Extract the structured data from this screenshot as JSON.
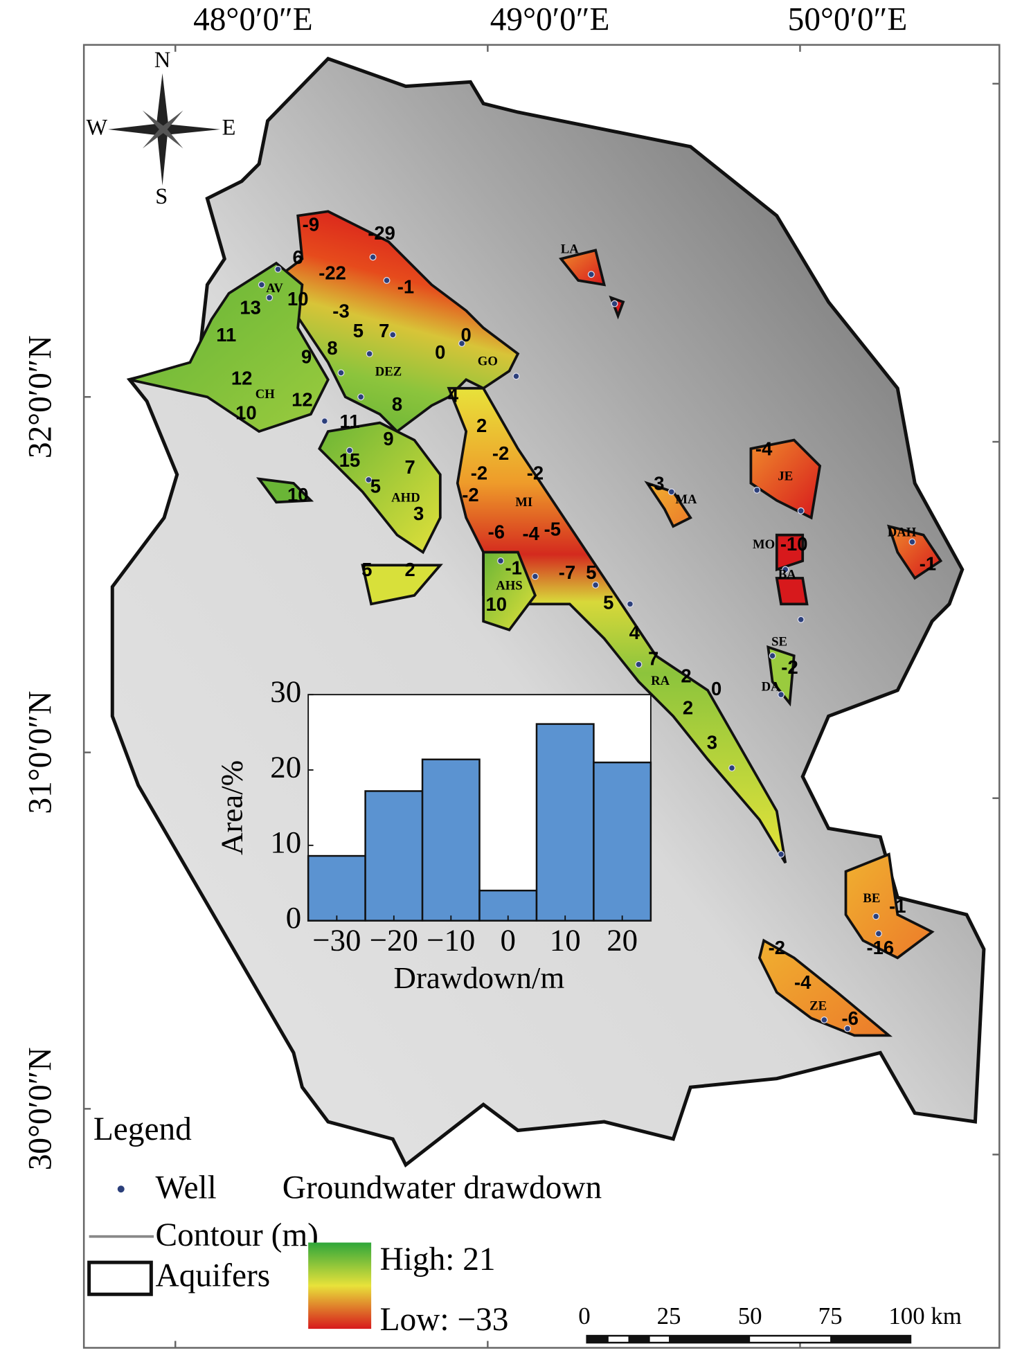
{
  "map": {
    "lon_labels": [
      "48°0′0″E",
      "49°0′0″E",
      "50°0′0″E"
    ],
    "lat_labels": [
      "32°0′0″N",
      "31°0′0″N",
      "30°0′0″N"
    ],
    "compass": {
      "n": "N",
      "s": "S",
      "w": "W",
      "e": "E"
    },
    "aquifer_labels": [
      "AV",
      "DEZ",
      "CH",
      "AHD",
      "GO",
      "MI",
      "AHS",
      "RA",
      "LA",
      "MA",
      "JE",
      "MO",
      "BA",
      "DAH",
      "SE",
      "DA",
      "BE",
      "ZE"
    ],
    "contour_labels": [
      "-29",
      "-9",
      "-22",
      "-3",
      "6",
      "13",
      "10",
      "-1",
      "5",
      "7",
      "9",
      "8",
      "0",
      "0",
      "12",
      "11",
      "12",
      "8",
      "11",
      "10",
      "9",
      "7",
      "15",
      "5",
      "3",
      "10",
      "5",
      "2",
      "4",
      "2",
      "-2",
      "-2",
      "-2",
      "-2",
      "-6",
      "-4",
      "-5",
      "-7",
      "5",
      "5",
      "4",
      "7",
      "2",
      "2",
      "0",
      "3",
      "10",
      "-1",
      "-4",
      "-10",
      "-3",
      "-2",
      "-1",
      "-1",
      "-16",
      "-2",
      "-4",
      "-6"
    ],
    "legend": {
      "title": "Legend",
      "well": "Well",
      "drawdown": "Groundwater drawdown",
      "contour": "Contour (m)",
      "aquifers": "Aquifers",
      "high": "High: 21",
      "low": "Low: −33"
    },
    "scale_bar": [
      "0",
      "25",
      "50",
      "75",
      "100 km"
    ]
  },
  "chart_data": {
    "type": "histogram",
    "bins": [
      -35,
      -25,
      -15,
      -5,
      5,
      15,
      25
    ],
    "values": [
      8.6,
      17.2,
      21.4,
      4.0,
      26.1,
      21.0
    ],
    "color": "#5b93d1",
    "xlabel": "Drawdown/m",
    "ylabel": "Area/%",
    "xlim": [
      -35,
      25
    ],
    "ylim": [
      0,
      30
    ],
    "xticks": [
      {
        "value": -30,
        "label": "−30"
      },
      {
        "value": -20,
        "label": "−20"
      },
      {
        "value": -10,
        "label": "−10"
      },
      0,
      10,
      20
    ],
    "yticks": [
      0,
      10,
      20,
      30
    ]
  }
}
